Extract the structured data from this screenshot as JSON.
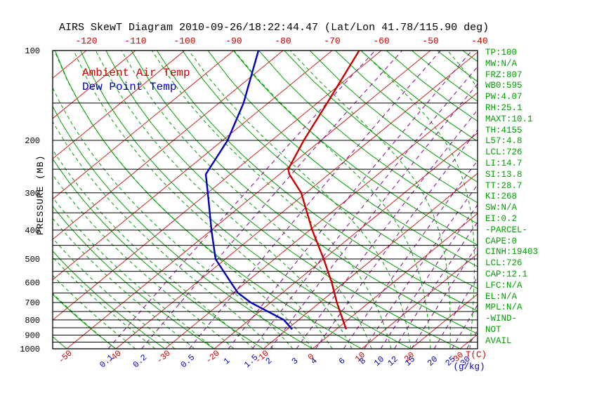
{
  "title": "AIRS SkewT Diagram 2010-09-26/18:22:44.47 (Lat/Lon 41.78/115.90 deg)",
  "legend": {
    "ambient": "Ambient Air Temp",
    "dew": "Dew Point Temp"
  },
  "axes": {
    "pressure_label": "PRESSURE (MB)",
    "pressure_ticks": [
      100,
      200,
      300,
      400,
      500,
      600,
      700,
      800,
      900,
      1000
    ],
    "top_temp_labels": [
      -120,
      -110,
      -100,
      -90,
      -80,
      -70,
      -60,
      -50,
      -40
    ],
    "bottom_temp_labels": [
      -50,
      -40,
      -30,
      -20,
      -10,
      0,
      10,
      20,
      30
    ],
    "temp_unit": "T(C)",
    "mixing_unit": "(g/kg)"
  },
  "indices": [
    "TP:100",
    "MW:N/A",
    "FRZ:807",
    "WB0:595",
    "PW:4.07",
    "RH:25.1",
    "MAXT:10.1",
    "TH:4155",
    "L57:4.8",
    "LCL:726",
    "LI:14.7",
    "SI:13.8",
    "TT:28.7",
    "KI:268",
    "SW:N/A",
    "EI:0.2",
    "-PARCEL-",
    "CAPE:0",
    "CINH:19403",
    "LCL:726",
    "CAP:12.1",
    "LFC:N/A",
    "EL:N/A",
    "MPL:N/A",
    "-WIND-",
    "NOT",
    "AVAIL"
  ],
  "colors": {
    "temp_line": "#cc0000",
    "dew_line": "#0000bb",
    "isotherm": "#cc2222",
    "adiabat": "#00a000",
    "moist_adiabat": "#00a000",
    "mixing": "#8b008b",
    "indices_text": "#00a000",
    "axis": "#000000",
    "top_labels": "#cc0000",
    "bottom_temp_labels": "#cc0000",
    "mixing_labels": "#0000bb"
  },
  "chart_data": {
    "type": "skewt-log-p",
    "pressure_range_mb": [
      100,
      1000
    ],
    "isobar_step_mb": 50,
    "isotherm_range_c": [
      -160,
      40
    ],
    "isotherm_step_c": 10,
    "dry_adiabat_theta_c": {
      "min": -50,
      "max": 180,
      "step": 10
    },
    "moist_adiabat_thetaw_c": {
      "min": -40,
      "max": 40,
      "step": 4
    },
    "mixing_ratios_g_kg": [
      0.1,
      0.2,
      0.5,
      1,
      1.5,
      2,
      3,
      4,
      6,
      8,
      10,
      12,
      15,
      20,
      25,
      30
    ],
    "temperature_profile_p_t": [
      [
        860,
        2
      ],
      [
        800,
        -1
      ],
      [
        700,
        -6.5
      ],
      [
        600,
        -12.5
      ],
      [
        500,
        -20
      ],
      [
        400,
        -29.5
      ],
      [
        300,
        -41
      ],
      [
        260,
        -48
      ],
      [
        250,
        -49.5
      ],
      [
        200,
        -53.5
      ],
      [
        150,
        -58
      ],
      [
        100,
        -64.5
      ]
    ],
    "dewpoint_profile_p_t": [
      [
        860,
        -9
      ],
      [
        800,
        -13
      ],
      [
        700,
        -24
      ],
      [
        650,
        -29
      ],
      [
        600,
        -33
      ],
      [
        500,
        -42
      ],
      [
        400,
        -50
      ],
      [
        300,
        -60
      ],
      [
        260,
        -65
      ],
      [
        200,
        -69
      ],
      [
        150,
        -75
      ],
      [
        100,
        -85
      ]
    ]
  }
}
